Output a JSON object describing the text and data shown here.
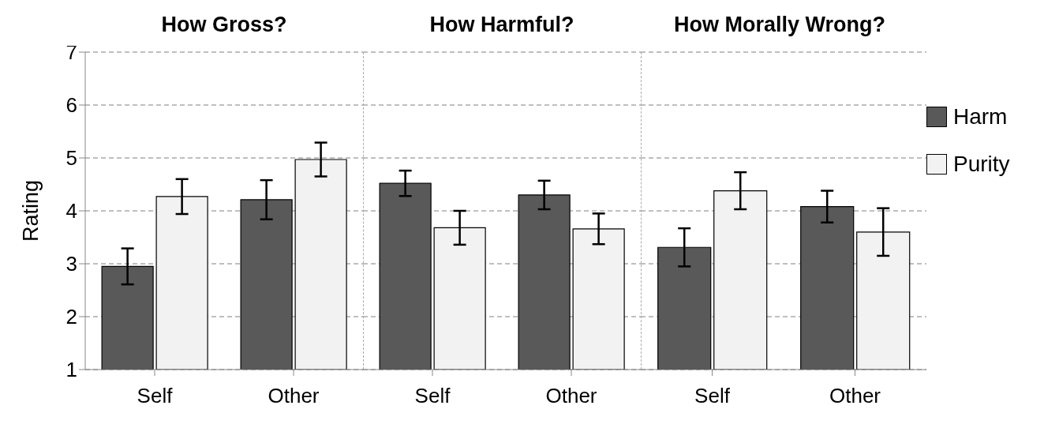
{
  "chart_data": [
    {
      "type": "bar",
      "title": "How Gross?",
      "ylabel": "Rating",
      "categories": [
        "Self",
        "Other"
      ],
      "ylim": [
        1,
        7
      ],
      "yticks": [
        1,
        2,
        3,
        4,
        5,
        6,
        7
      ],
      "grid": "y",
      "legend": false,
      "series": [
        {
          "color": "#595959",
          "values": [
            2.95,
            4.21
          ],
          "errors": [
            0.34,
            0.37
          ]
        },
        {
          "color": "#f2f2f2",
          "values": [
            4.27,
            4.97
          ],
          "errors": [
            0.33,
            0.32
          ]
        }
      ]
    },
    {
      "type": "bar",
      "title": "How Harmful?",
      "categories": [
        "Self",
        "Other"
      ],
      "ylim": [
        1,
        7
      ],
      "yticks": [
        1,
        2,
        3,
        4,
        5,
        6,
        7
      ],
      "grid": "y",
      "legend": false,
      "tick_labels": "x",
      "series": [
        {
          "color": "#595959",
          "values": [
            4.52,
            4.3
          ],
          "errors": [
            0.24,
            0.27
          ]
        },
        {
          "color": "#f2f2f2",
          "values": [
            3.68,
            3.66
          ],
          "errors": [
            0.32,
            0.29
          ]
        }
      ]
    },
    {
      "type": "bar",
      "title": "How Morally Wrong?",
      "categories": [
        "Self",
        "Other"
      ],
      "ylim": [
        1,
        7
      ],
      "yticks": [
        1,
        2,
        3,
        4,
        5,
        6,
        7
      ],
      "grid": "y",
      "legend": "right",
      "tick_labels": "x",
      "series": [
        {
          "name": "Harm",
          "color": "#595959",
          "values": [
            3.31,
            4.08
          ],
          "errors": [
            0.36,
            0.3
          ]
        },
        {
          "name": "Purity",
          "color": "#f2f2f2",
          "values": [
            4.38,
            3.6
          ],
          "errors": [
            0.35,
            0.45
          ]
        }
      ]
    }
  ]
}
